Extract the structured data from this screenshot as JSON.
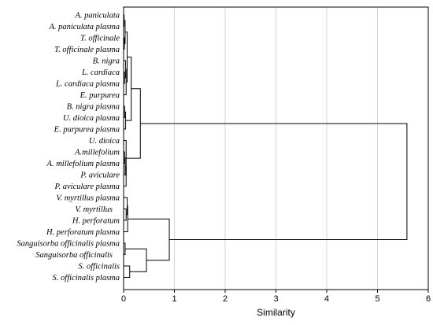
{
  "chart_data": {
    "type": "dendrogram",
    "xlabel": "Similarity",
    "xlim": [
      0,
      6
    ],
    "xticks": [
      0,
      1,
      2,
      3,
      4,
      5,
      6
    ],
    "grid": "vertical",
    "leaves": [
      "A. paniculata",
      "A. paniculata plasma",
      "T. officinale",
      "T. officinale plasma",
      "B. nigra",
      "L. cardiaca",
      "L. cardiaca plasma",
      "E. purpurea",
      "B. nigra plasma",
      "U. dioica plasma",
      "E. purpurea plasma",
      "U. dioica",
      "A.millefolium",
      "A. millefolium plasma",
      "P. aviculare",
      "P. aviculare plasma",
      "V. myrtillus plasma",
      "V. myrtillus",
      "H. perforatum",
      "H. perforatum plasma",
      "Sanguisorba officinalis plasma",
      "Sanguisorba officinalis",
      "S. officinalis",
      "S. officinalis plasma"
    ],
    "leaf_indent": [
      0,
      0,
      0,
      0,
      0,
      0,
      0,
      0,
      0,
      0,
      0,
      0,
      0,
      0,
      0,
      0,
      0,
      1,
      0,
      0,
      0,
      1,
      0,
      0
    ],
    "merges": [
      {
        "children": [
          [
            0
          ],
          [
            1
          ]
        ],
        "height": 0.01
      },
      {
        "children": [
          [
            2
          ],
          [
            3
          ]
        ],
        "height": 0.015
      },
      {
        "children": [
          [
            0,
            1
          ],
          [
            2,
            3
          ]
        ],
        "height": 0.03
      },
      {
        "children": [
          [
            5
          ],
          [
            6
          ]
        ],
        "height": 0.02
      },
      {
        "children": [
          [
            4
          ],
          [
            5,
            6
          ]
        ],
        "height": 0.04
      },
      {
        "children": [
          [
            4,
            5,
            6
          ],
          [
            7
          ]
        ],
        "height": 0.05
      },
      {
        "children": [
          [
            8
          ],
          [
            9
          ]
        ],
        "height": 0.02
      },
      {
        "children": [
          [
            8,
            9
          ],
          [
            10
          ]
        ],
        "height": 0.04
      },
      {
        "children": [
          [
            0,
            1,
            2,
            3
          ],
          [
            4,
            5,
            6,
            7
          ]
        ],
        "height": 0.07
      },
      {
        "children": [
          [
            0,
            1,
            2,
            3,
            4,
            5,
            6,
            7
          ],
          [
            8,
            9,
            10
          ]
        ],
        "height": 0.15
      },
      {
        "children": [
          [
            12
          ],
          [
            13
          ]
        ],
        "height": 0.02
      },
      {
        "children": [
          [
            12,
            13
          ],
          [
            14
          ]
        ],
        "height": 0.03
      },
      {
        "children": [
          [
            14,
            12,
            13
          ],
          [
            15
          ]
        ],
        "height": 0.05
      },
      {
        "children": [
          [
            11
          ],
          [
            12,
            13,
            14,
            15
          ]
        ],
        "height": 0.05
      },
      {
        "children": [
          [
            0,
            1,
            2,
            3,
            4,
            5,
            6,
            7,
            8,
            9,
            10
          ],
          [
            11,
            12,
            13,
            14,
            15
          ]
        ],
        "height": 0.33
      },
      {
        "children": [
          [
            17
          ],
          [
            18
          ]
        ],
        "height": 0.05
      },
      {
        "children": [
          [
            16
          ],
          [
            17,
            18
          ]
        ],
        "height": 0.07
      },
      {
        "children": [
          [
            16,
            17,
            18
          ],
          [
            19
          ]
        ],
        "height": 0.08
      },
      {
        "children": [
          [
            20
          ],
          [
            21
          ]
        ],
        "height": 0.03
      },
      {
        "children": [
          [
            22
          ],
          [
            23
          ]
        ],
        "height": 0.12
      },
      {
        "children": [
          [
            20,
            21
          ],
          [
            22,
            23
          ]
        ],
        "height": 0.45
      },
      {
        "children": [
          [
            16,
            17,
            18,
            19
          ],
          [
            20,
            21,
            22,
            23
          ]
        ],
        "height": 0.9
      },
      {
        "children": [
          [
            0,
            1,
            2,
            3,
            4,
            5,
            6,
            7,
            8,
            9,
            10,
            11,
            12,
            13,
            14,
            15
          ],
          [
            16,
            17,
            18,
            19,
            20,
            21,
            22,
            23
          ]
        ],
        "height": 5.58
      }
    ]
  }
}
